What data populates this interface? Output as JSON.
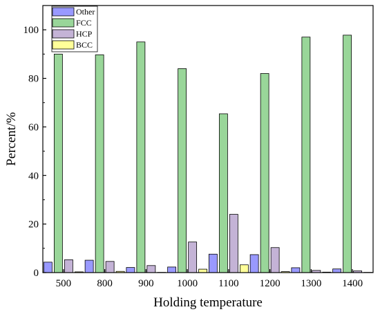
{
  "chart_data": {
    "type": "bar",
    "xlabel": "Holding temperature",
    "ylabel": "Percent/%",
    "categories": [
      "500",
      "800",
      "900",
      "1000",
      "1100",
      "1200",
      "1300",
      "1400"
    ],
    "ylim": [
      0,
      110
    ],
    "yticks": [
      0,
      20,
      40,
      60,
      80,
      100
    ],
    "grid": false,
    "legend_position": "top-left",
    "series": [
      {
        "name": "Other",
        "color": "#9999ff",
        "values": [
          4.3,
          5.1,
          2.1,
          2.3,
          7.6,
          7.4,
          2.0,
          1.5
        ]
      },
      {
        "name": "FCC",
        "color": "#99d699",
        "values": [
          90.0,
          89.7,
          95.0,
          84.0,
          65.4,
          82.0,
          97.0,
          97.8
        ]
      },
      {
        "name": "HCP",
        "color": "#c4b3d6",
        "values": [
          5.3,
          4.6,
          2.9,
          12.6,
          24.0,
          10.3,
          0.9,
          0.7
        ]
      },
      {
        "name": "BCC",
        "color": "#ffff99",
        "values": [
          0.3,
          0.5,
          0.1,
          1.4,
          3.2,
          0.4,
          0.2,
          0.1
        ]
      }
    ]
  }
}
